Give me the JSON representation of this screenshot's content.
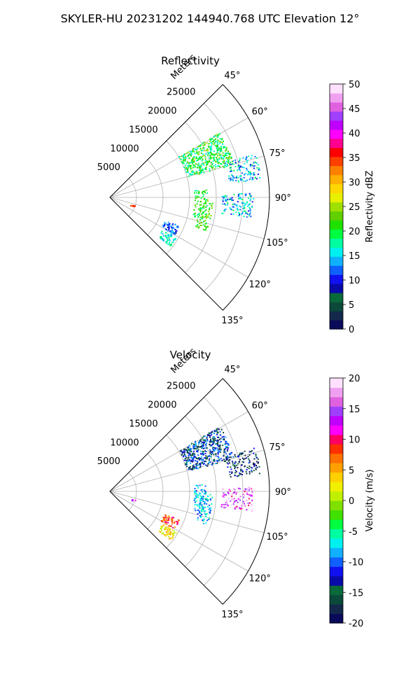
{
  "figure": {
    "suptitle": "SKYLER-HU  20231202  144940.768 UTC Elevation 12°"
  },
  "colors": {
    "grid": "#b0b0b0",
    "frame": "#000000",
    "reflectivity_cmap": [
      "#0a0a5a",
      "#14284c",
      "#0b4a3a",
      "#0a6a3a",
      "#0a0aa8",
      "#1010f0",
      "#1060ff",
      "#10b0ff",
      "#00f0f0",
      "#00ffa0",
      "#00ff40",
      "#20e000",
      "#60d000",
      "#a0e000",
      "#e8f000",
      "#ffd800",
      "#ffb000",
      "#ff8000",
      "#ff4000",
      "#ff0000",
      "#ff0090",
      "#ff00ff",
      "#c000ff",
      "#a040ff",
      "#e060e0",
      "#f0a0f0",
      "#ffe0ff"
    ],
    "velocity_cmap": [
      "#0a0a5a",
      "#14284c",
      "#0b4a3a",
      "#0a6a3a",
      "#0a0aa8",
      "#1010f0",
      "#1060ff",
      "#10b0ff",
      "#00f0f0",
      "#00ffa0",
      "#00ff40",
      "#40e000",
      "#80e000",
      "#c0f000",
      "#f0f000",
      "#ffd000",
      "#ffa000",
      "#ff7000",
      "#ff3000",
      "#ff0060",
      "#ff00ff",
      "#c000ff",
      "#a040ff",
      "#e060e0",
      "#f0a0f0",
      "#ffe0ff"
    ]
  },
  "chart_data": [
    {
      "type": "heatmap",
      "title": "Reflectivity",
      "projection": "polar-sector",
      "range_label": "Meters",
      "range_ticks": [
        5000,
        10000,
        15000,
        20000,
        25000
      ],
      "rlim": [
        0,
        30000
      ],
      "azimuth_ticks_deg": [
        45,
        60,
        75,
        90,
        105,
        120,
        135
      ],
      "azimuth_tick_labels": [
        "45°",
        "60°",
        "75°",
        "90°",
        "105°",
        "120°",
        "135°"
      ],
      "azimuth_range_deg": [
        45,
        135
      ],
      "colorbar": {
        "label": "Reflectivity dBZ",
        "range": [
          0,
          50
        ],
        "ticks": [
          0,
          5,
          10,
          15,
          20,
          25,
          30,
          35,
          40,
          45,
          50
        ]
      },
      "echoes": [
        {
          "az_deg": 67,
          "range_m": 19500,
          "value_dBZ": 20,
          "extent": "large"
        },
        {
          "az_deg": 78,
          "range_m": 25500,
          "value_dBZ": 15,
          "extent": "medium"
        },
        {
          "az_deg": 93,
          "range_m": 24000,
          "value_dBZ": 15,
          "extent": "medium"
        },
        {
          "az_deg": 94,
          "range_m": 17000,
          "value_dBZ": 20,
          "extent": "line"
        },
        {
          "az_deg": 100,
          "range_m": 18000,
          "value_dBZ": 22,
          "extent": "line"
        },
        {
          "az_deg": 116,
          "range_m": 12500,
          "value_dBZ": 12,
          "extent": "small"
        },
        {
          "az_deg": 125,
          "range_m": 13000,
          "value_dBZ": 17,
          "extent": "small"
        },
        {
          "az_deg": 110,
          "range_m": 4500,
          "value_dBZ": 35,
          "extent": "tiny"
        }
      ]
    },
    {
      "type": "heatmap",
      "title": "Velocity",
      "projection": "polar-sector",
      "range_label": "Meters",
      "range_ticks": [
        5000,
        10000,
        15000,
        20000,
        25000
      ],
      "rlim": [
        0,
        30000
      ],
      "azimuth_ticks_deg": [
        45,
        60,
        75,
        90,
        105,
        120,
        135
      ],
      "azimuth_tick_labels": [
        "45°",
        "60°",
        "75°",
        "90°",
        "105°",
        "120°",
        "135°"
      ],
      "azimuth_range_deg": [
        45,
        135
      ],
      "colorbar": {
        "label": "Velocity (m/s)",
        "range": [
          -20,
          20
        ],
        "ticks": [
          -20,
          -15,
          -10,
          -5,
          0,
          5,
          10,
          15,
          20
        ]
      },
      "echoes": [
        {
          "az_deg": 67,
          "range_m": 19500,
          "value_ms": -13,
          "extent": "large"
        },
        {
          "az_deg": 78,
          "range_m": 25500,
          "value_ms": -15,
          "extent": "medium"
        },
        {
          "az_deg": 93,
          "range_m": 24000,
          "value_ms": 15,
          "extent": "medium"
        },
        {
          "az_deg": 94,
          "range_m": 17000,
          "value_ms": -8,
          "extent": "line"
        },
        {
          "az_deg": 100,
          "range_m": 18000,
          "value_ms": -8,
          "extent": "line"
        },
        {
          "az_deg": 116,
          "range_m": 12500,
          "value_ms": 8,
          "extent": "small"
        },
        {
          "az_deg": 125,
          "range_m": 13000,
          "value_ms": 3,
          "extent": "small"
        },
        {
          "az_deg": 110,
          "range_m": 4500,
          "value_ms": 12,
          "extent": "tiny"
        }
      ]
    }
  ]
}
